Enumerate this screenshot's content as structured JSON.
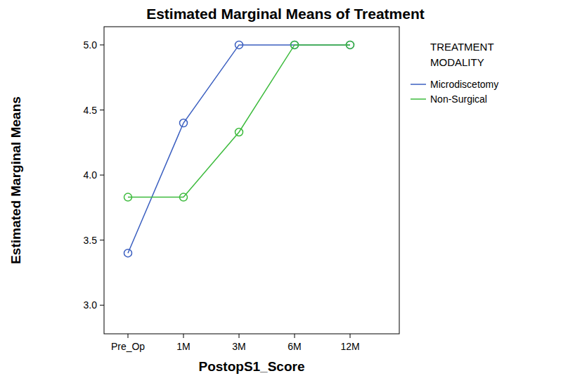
{
  "chart_data": {
    "type": "line",
    "title": "Estimated Marginal Means of Treatment",
    "x_label": "PostopS1_Score",
    "y_label": "Estimated Marginal Means",
    "legend_title": "TREATMENT MODALITY",
    "categories": [
      "Pre_Op",
      "1M",
      "3M",
      "6M",
      "12M"
    ],
    "series": [
      {
        "name": "Microdiscetomy",
        "color": "#3b5fc0",
        "marker": "circle",
        "line_style": "solid",
        "values": [
          3.4,
          4.4,
          5.0,
          5.0,
          5.0
        ]
      },
      {
        "name": "Non-Surgical",
        "color": "#3dbb3d",
        "marker": "circle",
        "line_style": "solid",
        "values": [
          3.83,
          3.83,
          4.33,
          5.0,
          5.0
        ]
      }
    ],
    "ylim": [
      2.78,
      5.14
    ],
    "yticks": [
      {
        "value": 3,
        "label": "3.0"
      },
      3.5,
      {
        "value": 4,
        "label": "4.0"
      },
      4.5,
      {
        "value": 5,
        "label": "5.0"
      }
    ],
    "grid": false,
    "legend": "right"
  }
}
